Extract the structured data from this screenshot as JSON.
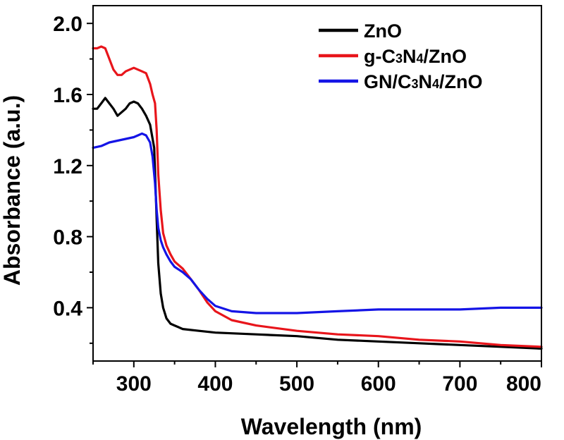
{
  "chart_data": {
    "type": "line",
    "title": "",
    "xlabel": "Wavelength (nm)",
    "ylabel": "Absorbance (a.u.)",
    "xlim": [
      250,
      800
    ],
    "ylim": [
      0.1,
      2.1
    ],
    "xticks": [
      300,
      400,
      500,
      600,
      700,
      800
    ],
    "xtick_labels": [
      "300",
      "400",
      "500",
      "600",
      "700",
      "800"
    ],
    "yticks": [
      0.4,
      0.8,
      1.2,
      1.6,
      2.0
    ],
    "ytick_labels": [
      "0.4",
      "0.8",
      "1.2",
      "1.6",
      "2.0"
    ],
    "grid": false,
    "legend_position": "top-right",
    "series": [
      {
        "name": "ZnO",
        "label_parts": [
          {
            "t": "ZnO"
          }
        ],
        "color": "#000000",
        "x": [
          250,
          255,
          260,
          265,
          270,
          275,
          280,
          285,
          290,
          295,
          300,
          305,
          310,
          315,
          320,
          325,
          328,
          330,
          333,
          336,
          340,
          345,
          350,
          360,
          380,
          400,
          450,
          500,
          550,
          600,
          650,
          700,
          750,
          800
        ],
        "y": [
          1.52,
          1.52,
          1.55,
          1.58,
          1.55,
          1.52,
          1.48,
          1.5,
          1.52,
          1.55,
          1.56,
          1.55,
          1.52,
          1.48,
          1.43,
          1.3,
          0.9,
          0.65,
          0.48,
          0.4,
          0.34,
          0.31,
          0.3,
          0.28,
          0.27,
          0.26,
          0.25,
          0.24,
          0.22,
          0.21,
          0.2,
          0.19,
          0.18,
          0.17
        ]
      },
      {
        "name": "g-C3N4/ZnO",
        "label_parts": [
          {
            "t": "g-C"
          },
          {
            "t": "3",
            "sub": true
          },
          {
            "t": "N"
          },
          {
            "t": "4",
            "sub": true
          },
          {
            "t": "/ZnO"
          }
        ],
        "color": "#e8151b",
        "x": [
          250,
          255,
          260,
          265,
          270,
          275,
          280,
          285,
          290,
          295,
          300,
          305,
          310,
          315,
          320,
          323,
          326,
          328,
          330,
          333,
          336,
          340,
          345,
          350,
          360,
          370,
          380,
          390,
          400,
          420,
          450,
          500,
          550,
          600,
          650,
          700,
          750,
          800
        ],
        "y": [
          1.86,
          1.86,
          1.87,
          1.86,
          1.8,
          1.74,
          1.71,
          1.71,
          1.73,
          1.74,
          1.75,
          1.74,
          1.73,
          1.72,
          1.66,
          1.6,
          1.55,
          1.4,
          1.15,
          0.95,
          0.82,
          0.75,
          0.7,
          0.66,
          0.62,
          0.56,
          0.5,
          0.43,
          0.38,
          0.33,
          0.3,
          0.27,
          0.25,
          0.24,
          0.22,
          0.21,
          0.19,
          0.18
        ]
      },
      {
        "name": "GN/C3N4/ZnO",
        "label_parts": [
          {
            "t": "GN/C"
          },
          {
            "t": "3",
            "sub": true
          },
          {
            "t": "N"
          },
          {
            "t": "4",
            "sub": true
          },
          {
            "t": "/ZnO"
          }
        ],
        "color": "#1414e6",
        "x": [
          250,
          260,
          270,
          280,
          290,
          300,
          305,
          310,
          315,
          320,
          323,
          326,
          328,
          330,
          333,
          336,
          340,
          345,
          350,
          360,
          370,
          380,
          390,
          400,
          420,
          450,
          500,
          550,
          600,
          650,
          700,
          750,
          800
        ],
        "y": [
          1.3,
          1.31,
          1.33,
          1.34,
          1.35,
          1.36,
          1.37,
          1.38,
          1.37,
          1.33,
          1.25,
          1.1,
          0.95,
          0.85,
          0.78,
          0.74,
          0.7,
          0.66,
          0.63,
          0.6,
          0.56,
          0.5,
          0.45,
          0.41,
          0.38,
          0.37,
          0.37,
          0.38,
          0.39,
          0.39,
          0.39,
          0.4,
          0.4
        ]
      }
    ]
  }
}
